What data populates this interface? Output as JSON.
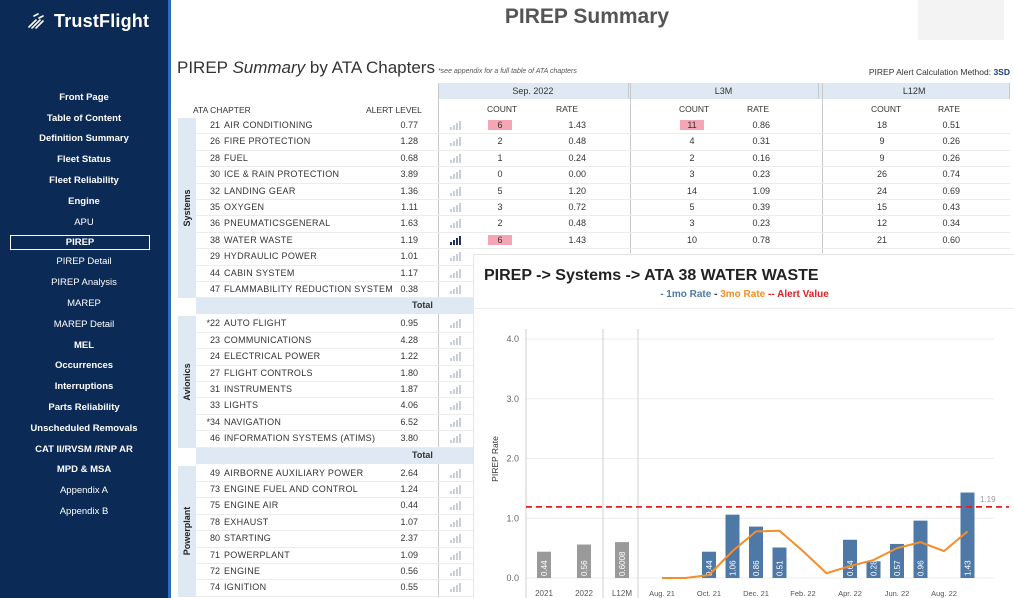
{
  "brand": {
    "name": "TrustFlight",
    "icon": "trustflight-logo-icon"
  },
  "nav": [
    {
      "label": "Front Page",
      "bold": true
    },
    {
      "label": "Table of Content",
      "bold": true
    },
    {
      "label": "Definition Summary",
      "bold": true
    },
    {
      "label": "Fleet Status",
      "bold": true
    },
    {
      "label": "Fleet Reliability",
      "bold": true
    },
    {
      "label": "Engine",
      "bold": true
    },
    {
      "label": "APU",
      "bold": false
    },
    {
      "label": "PIREP",
      "bold": true,
      "active": true
    },
    {
      "label": "PIREP Detail",
      "bold": false
    },
    {
      "label": "PIREP Analysis",
      "bold": false
    },
    {
      "label": "MAREP",
      "bold": false
    },
    {
      "label": "MAREP Detail",
      "bold": false
    },
    {
      "label": "MEL",
      "bold": true
    },
    {
      "label": "Occurrences",
      "bold": true
    },
    {
      "label": "Interruptions",
      "bold": true
    },
    {
      "label": "Parts Reliability",
      "bold": true
    },
    {
      "label": "Unscheduled Removals",
      "bold": true
    },
    {
      "label": "CAT II/RVSM /RNP AR",
      "bold": true
    },
    {
      "label": "MPD & MSA",
      "bold": true
    },
    {
      "label": "Appendix A",
      "bold": false
    },
    {
      "label": "Appendix B",
      "bold": false
    }
  ],
  "header": {
    "title": "PIREP Summary"
  },
  "section": {
    "title_prefix": "PIREP ",
    "title_em": "Summary",
    "title_suffix": " by ATA Chapters",
    "note": "*see appendix for a full table of ATA chapters",
    "alert_method_label": "PIREP Alert Calculation Method:",
    "alert_method_value": "3SD"
  },
  "table": {
    "col_ata": "ATA CHAPTER",
    "col_alert": "ALERT LEVEL",
    "periods": [
      "Sep. 2022",
      "L3M",
      "L12M"
    ],
    "col_count": "COUNT",
    "col_rate": "RATE",
    "total_label": "Total",
    "groups": [
      {
        "name": "Systems",
        "rows": [
          {
            "num": "21",
            "name": "AIR CONDITIONING",
            "alert": "0.77",
            "c1": "6",
            "r1": "1.43",
            "c2": "11",
            "r2": "0.86",
            "c3": "18",
            "r3": "0.51",
            "h1": true,
            "h2": true
          },
          {
            "num": "26",
            "name": "FIRE PROTECTION",
            "alert": "1.28",
            "c1": "2",
            "r1": "0.48",
            "c2": "4",
            "r2": "0.31",
            "c3": "9",
            "r3": "0.26"
          },
          {
            "num": "28",
            "name": "FUEL",
            "alert": "0.68",
            "c1": "1",
            "r1": "0.24",
            "c2": "2",
            "r2": "0.16",
            "c3": "9",
            "r3": "0.26"
          },
          {
            "num": "30",
            "name": "ICE & RAIN PROTECTION",
            "alert": "3.89",
            "c1": "0",
            "r1": "0.00",
            "c2": "3",
            "r2": "0.23",
            "c3": "26",
            "r3": "0.74"
          },
          {
            "num": "32",
            "name": "LANDING GEAR",
            "alert": "1.36",
            "c1": "5",
            "r1": "1.20",
            "c2": "14",
            "r2": "1.09",
            "c3": "24",
            "r3": "0.69"
          },
          {
            "num": "35",
            "name": "OXYGEN",
            "alert": "1.11",
            "c1": "3",
            "r1": "0.72",
            "c2": "5",
            "r2": "0.39",
            "c3": "15",
            "r3": "0.43"
          },
          {
            "num": "36",
            "name": "PNEUMATICSGENERAL",
            "alert": "1.63",
            "c1": "2",
            "r1": "0.48",
            "c2": "3",
            "r2": "0.23",
            "c3": "12",
            "r3": "0.34"
          },
          {
            "num": "38",
            "name": "WATER WASTE",
            "alert": "1.19",
            "c1": "6",
            "r1": "1.43",
            "c2": "10",
            "r2": "0.78",
            "c3": "21",
            "r3": "0.60",
            "h1": true,
            "dark_bars": true
          },
          {
            "num": "29",
            "name": "HYDRAULIC POWER",
            "alert": "1.01"
          },
          {
            "num": "44",
            "name": "CABIN SYSTEM",
            "alert": "1.17"
          },
          {
            "num": "47",
            "name": "FLAMMABILITY REDUCTION SYSTEM",
            "alert": "0.38"
          }
        ]
      },
      {
        "name": "Avionics",
        "rows": [
          {
            "num": "*22",
            "name": "AUTO FLIGHT",
            "alert": "0.95"
          },
          {
            "num": "23",
            "name": "COMMUNICATIONS",
            "alert": "4.28"
          },
          {
            "num": "24",
            "name": "ELECTRICAL POWER",
            "alert": "1.22"
          },
          {
            "num": "27",
            "name": "FLIGHT CONTROLS",
            "alert": "1.80"
          },
          {
            "num": "31",
            "name": "INSTRUMENTS",
            "alert": "1.87"
          },
          {
            "num": "33",
            "name": "LIGHTS",
            "alert": "4.06"
          },
          {
            "num": "*34",
            "name": "NAVIGATION",
            "alert": "6.52"
          },
          {
            "num": "46",
            "name": "INFORMATION SYSTEMS (ATIMS)",
            "alert": "3.80"
          }
        ]
      },
      {
        "name": "Powerplant",
        "rows": [
          {
            "num": "49",
            "name": "AIRBORNE AUXILIARY POWER",
            "alert": "2.64"
          },
          {
            "num": "73",
            "name": "ENGINE FUEL AND CONTROL",
            "alert": "1.24"
          },
          {
            "num": "75",
            "name": "ENGINE AIR",
            "alert": "0.44"
          },
          {
            "num": "78",
            "name": "EXHAUST",
            "alert": "1.07"
          },
          {
            "num": "80",
            "name": "STARTING",
            "alert": "2.37"
          },
          {
            "num": "71",
            "name": "POWERPLANT",
            "alert": "1.09"
          },
          {
            "num": "72",
            "name": "ENGINE",
            "alert": "0.56"
          },
          {
            "num": "74",
            "name": "IGNITION",
            "alert": "0.55"
          }
        ]
      }
    ]
  },
  "tooltip": {
    "title": "PIREP -> Systems -> ATA 38 WATER WASTE",
    "legend_1": "- 1mo Rate",
    "legend_sep_1": " - ",
    "legend_2": "3mo Rate",
    "legend_sep_2": " -- ",
    "legend_3": "Alert Value"
  },
  "chart_data": {
    "type": "bar",
    "ylabel": "PIREP Rate",
    "ylim": [
      0,
      4.0
    ],
    "yticks": [
      "0.0",
      "1.0",
      "2.0",
      "3.0",
      "4.0"
    ],
    "alert_value": 1.19,
    "alert_label": "1.19",
    "colors": {
      "bar_1mo": "#4e79a7",
      "bar_annual": "#9a9a9a",
      "line_3mo": "#f28e2b",
      "alert": "#e02020"
    },
    "annual": [
      {
        "label": "2021",
        "value": 0.44,
        "text": "0.44"
      },
      {
        "label": "2022",
        "value": 0.56,
        "text": "0.56"
      },
      {
        "label": "L12M",
        "value": 0.6008,
        "text": "0.6008"
      }
    ],
    "monthly": {
      "x_labels": [
        "Aug. 21",
        "Oct. 21",
        "Dec. 21",
        "Feb. 22",
        "Apr. 22",
        "Jun. 22",
        "Aug. 22"
      ],
      "months": [
        "Aug. 21",
        "Sep. 21",
        "Oct. 21",
        "Nov. 21",
        "Dec. 21",
        "Jan. 22",
        "Feb. 22",
        "Mar. 22",
        "Apr. 22",
        "May 22",
        "Jun. 22",
        "Jul. 22",
        "Aug. 22",
        "Sep. 22"
      ],
      "rate_1mo": [
        0,
        0,
        0.44,
        1.06,
        0.86,
        0.51,
        0,
        0,
        0.64,
        0.28,
        0.57,
        0.96,
        0,
        1.43
      ],
      "labels_1mo": [
        "",
        "",
        "0.44",
        "1.06",
        "0.86",
        "0.51",
        "",
        "",
        "0.64",
        "0.28",
        "0.57",
        "0.96",
        "",
        "1.43"
      ],
      "rate_3mo": [
        0,
        0,
        0.05,
        0.45,
        0.78,
        0.79,
        0.45,
        0.08,
        0.2,
        0.3,
        0.5,
        0.6,
        0.45,
        0.78
      ]
    }
  }
}
